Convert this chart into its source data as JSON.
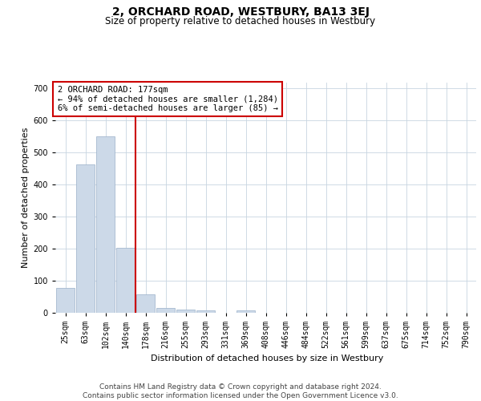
{
  "title": "2, ORCHARD ROAD, WESTBURY, BA13 3EJ",
  "subtitle": "Size of property relative to detached houses in Westbury",
  "xlabel": "Distribution of detached houses by size in Westbury",
  "ylabel": "Number of detached properties",
  "categories": [
    "25sqm",
    "63sqm",
    "102sqm",
    "140sqm",
    "178sqm",
    "216sqm",
    "255sqm",
    "293sqm",
    "331sqm",
    "369sqm",
    "408sqm",
    "446sqm",
    "484sqm",
    "522sqm",
    "561sqm",
    "599sqm",
    "637sqm",
    "675sqm",
    "714sqm",
    "752sqm",
    "790sqm"
  ],
  "values": [
    78,
    463,
    551,
    204,
    57,
    14,
    9,
    8,
    0,
    8,
    0,
    0,
    0,
    0,
    0,
    0,
    0,
    0,
    0,
    0,
    0
  ],
  "bar_color": "#ccd9e8",
  "bar_edgecolor": "#9ab0c8",
  "vline_x": 3.5,
  "annotation_line1": "2 ORCHARD ROAD: 177sqm",
  "annotation_line2": "← 94% of detached houses are smaller (1,284)",
  "annotation_line3": "6% of semi-detached houses are larger (85) →",
  "vline_color": "#cc0000",
  "annotation_edgecolor": "#cc0000",
  "annotation_facecolor": "#ffffff",
  "ylim": [
    0,
    720
  ],
  "yticks": [
    0,
    100,
    200,
    300,
    400,
    500,
    600,
    700
  ],
  "footer_line1": "Contains HM Land Registry data © Crown copyright and database right 2024.",
  "footer_line2": "Contains public sector information licensed under the Open Government Licence v3.0.",
  "bg_color": "#ffffff",
  "grid_color": "#c8d4e0",
  "title_fontsize": 10,
  "subtitle_fontsize": 8.5,
  "ylabel_fontsize": 8,
  "xlabel_fontsize": 8,
  "tick_fontsize": 7,
  "annot_fontsize": 7.5,
  "footer_fontsize": 6.5
}
